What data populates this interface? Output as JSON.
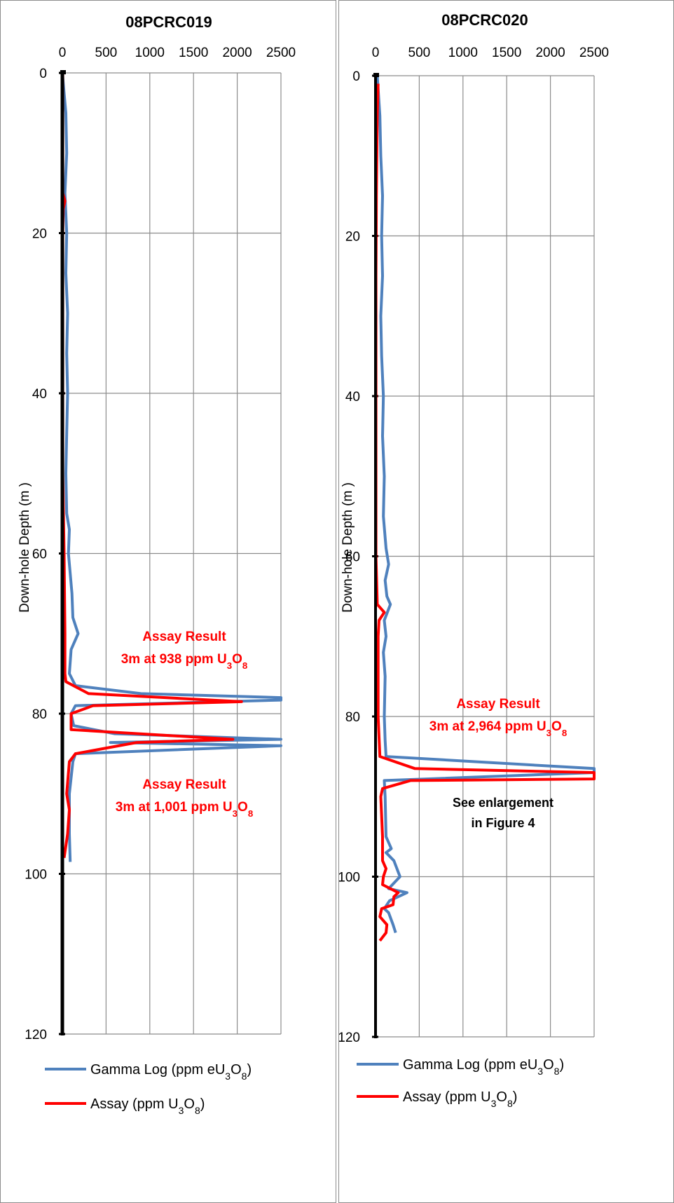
{
  "chart_data": [
    {
      "type": "line",
      "title": "08PCRC019",
      "ylabel": "Down-hole Depth (m )",
      "xlabel": "",
      "xlim": [
        0,
        2500
      ],
      "ylim": [
        0,
        120
      ],
      "y_inverted": true,
      "x_ticks": [
        "0",
        "500",
        "1000",
        "1500",
        "2000",
        "2500"
      ],
      "y_ticks": [
        "0",
        "20",
        "40",
        "60",
        "80",
        "100",
        "120"
      ],
      "grid": "vertical and horizontal major gridlines",
      "legend_position": "bottom",
      "series": [
        {
          "name": "Gamma Log (ppm eU3O8)",
          "color": "#4f81bd",
          "points": [
            [
              0,
              0
            ],
            [
              40,
              5
            ],
            [
              50,
              10
            ],
            [
              30,
              15
            ],
            [
              50,
              20
            ],
            [
              40,
              25
            ],
            [
              60,
              30
            ],
            [
              50,
              35
            ],
            [
              60,
              40
            ],
            [
              50,
              45
            ],
            [
              40,
              50
            ],
            [
              50,
              55
            ],
            [
              80,
              57
            ],
            [
              70,
              60
            ],
            [
              110,
              65
            ],
            [
              120,
              68
            ],
            [
              180,
              70
            ],
            [
              100,
              72
            ],
            [
              80,
              75
            ],
            [
              150,
              76.5
            ],
            [
              900,
              77.5
            ],
            [
              2500,
              78
            ],
            [
              2500,
              78.3
            ],
            [
              150,
              79
            ],
            [
              100,
              80
            ],
            [
              130,
              81.5
            ],
            [
              600,
              82.5
            ],
            [
              2500,
              83.2
            ],
            [
              550,
              83.6
            ],
            [
              2500,
              84
            ],
            [
              150,
              85
            ],
            [
              120,
              86
            ],
            [
              80,
              90
            ],
            [
              80,
              95
            ],
            [
              90,
              98.5
            ]
          ]
        },
        {
          "name": "Assay (ppm U3O8)",
          "color": "#ff0000",
          "points": [
            [
              5,
              0
            ],
            [
              5,
              15
            ],
            [
              30,
              16
            ],
            [
              10,
              17
            ],
            [
              5,
              20
            ],
            [
              5,
              28
            ],
            [
              5,
              50
            ],
            [
              20,
              60
            ],
            [
              30,
              70
            ],
            [
              30,
              75
            ],
            [
              40,
              76
            ],
            [
              300,
              77.5
            ],
            [
              2050,
              78.5
            ],
            [
              350,
              79
            ],
            [
              100,
              80
            ],
            [
              100,
              82
            ],
            [
              1950,
              83.2
            ],
            [
              850,
              83.6
            ],
            [
              150,
              85
            ],
            [
              80,
              86
            ],
            [
              50,
              90
            ],
            [
              80,
              92
            ],
            [
              60,
              95
            ],
            [
              20,
              98
            ]
          ]
        }
      ],
      "annotations": [
        {
          "line1": "Assay Result",
          "line2_pre": "3m at 938 ppm U",
          "sub1": "3",
          "mid": "O",
          "sub2": "8"
        },
        {
          "line1": "Assay Result",
          "line2_pre": "3m at 1,001 ppm U",
          "sub1": "3",
          "mid": "O",
          "sub2": "8"
        }
      ],
      "note": null
    },
    {
      "type": "line",
      "title": "08PCRC020",
      "ylabel": "Down-hole Depth (m )",
      "xlabel": "",
      "xlim": [
        0,
        2500
      ],
      "ylim": [
        0,
        120
      ],
      "y_inverted": true,
      "x_ticks": [
        "0",
        "500",
        "1000",
        "1500",
        "2000",
        "2500"
      ],
      "y_ticks": [
        "0",
        "20",
        "40",
        "60",
        "80",
        "100",
        "120"
      ],
      "grid": "vertical and horizontal major gridlines",
      "legend_position": "bottom",
      "series": [
        {
          "name": "Gamma Log (ppm eU3O8)",
          "color": "#4f81bd",
          "points": [
            [
              20,
              0
            ],
            [
              50,
              5
            ],
            [
              60,
              10
            ],
            [
              80,
              15
            ],
            [
              70,
              20
            ],
            [
              80,
              25
            ],
            [
              60,
              30
            ],
            [
              70,
              35
            ],
            [
              90,
              40
            ],
            [
              80,
              45
            ],
            [
              100,
              50
            ],
            [
              90,
              55
            ],
            [
              120,
              59
            ],
            [
              150,
              61
            ],
            [
              110,
              63
            ],
            [
              130,
              65
            ],
            [
              170,
              66
            ],
            [
              100,
              68
            ],
            [
              120,
              70
            ],
            [
              90,
              72
            ],
            [
              110,
              75
            ],
            [
              100,
              80
            ],
            [
              110,
              83
            ],
            [
              120,
              85
            ],
            [
              2500,
              86.5
            ],
            [
              2500,
              87
            ],
            [
              100,
              88
            ],
            [
              110,
              90
            ],
            [
              120,
              95
            ],
            [
              180,
              96.5
            ],
            [
              120,
              97
            ],
            [
              210,
              98
            ],
            [
              280,
              100
            ],
            [
              150,
              101.5
            ],
            [
              360,
              102
            ],
            [
              160,
              103
            ],
            [
              100,
              104
            ],
            [
              150,
              104.5
            ],
            [
              200,
              106
            ],
            [
              230,
              107
            ]
          ]
        },
        {
          "name": "Assay (ppm U3O8)",
          "color": "#ff0000",
          "points": [
            [
              30,
              1
            ],
            [
              20,
              5
            ],
            [
              10,
              15
            ],
            [
              5,
              25
            ],
            [
              5,
              40
            ],
            [
              5,
              60
            ],
            [
              20,
              66
            ],
            [
              100,
              67
            ],
            [
              40,
              68
            ],
            [
              30,
              70
            ],
            [
              30,
              80
            ],
            [
              50,
              85
            ],
            [
              450,
              86.5
            ],
            [
              2500,
              87
            ],
            [
              2500,
              87.8
            ],
            [
              400,
              88
            ],
            [
              80,
              89
            ],
            [
              60,
              90
            ],
            [
              80,
              95
            ],
            [
              80,
              98
            ],
            [
              120,
              99
            ],
            [
              90,
              100
            ],
            [
              80,
              101
            ],
            [
              260,
              102
            ],
            [
              210,
              102.5
            ],
            [
              200,
              103.5
            ],
            [
              70,
              104
            ],
            [
              50,
              105
            ],
            [
              130,
              106
            ],
            [
              120,
              107
            ],
            [
              50,
              108
            ]
          ]
        }
      ],
      "annotations": [
        {
          "line1": "Assay Result",
          "line2_pre": "3m at 2,964 ppm U",
          "sub1": "3",
          "mid": "O",
          "sub2": "8"
        }
      ],
      "note": {
        "line1": "See enlargement",
        "line2": "in Figure 4"
      }
    }
  ],
  "legend_labels": {
    "gamma": {
      "pre": "Gamma Log (ppm eU",
      "sub1": "3",
      "mid": "O",
      "sub2": "8",
      "post": ")"
    },
    "assay": {
      "pre": "Assay (ppm U",
      "sub1": "3",
      "mid": "O",
      "sub2": "8",
      "post": ")"
    }
  }
}
